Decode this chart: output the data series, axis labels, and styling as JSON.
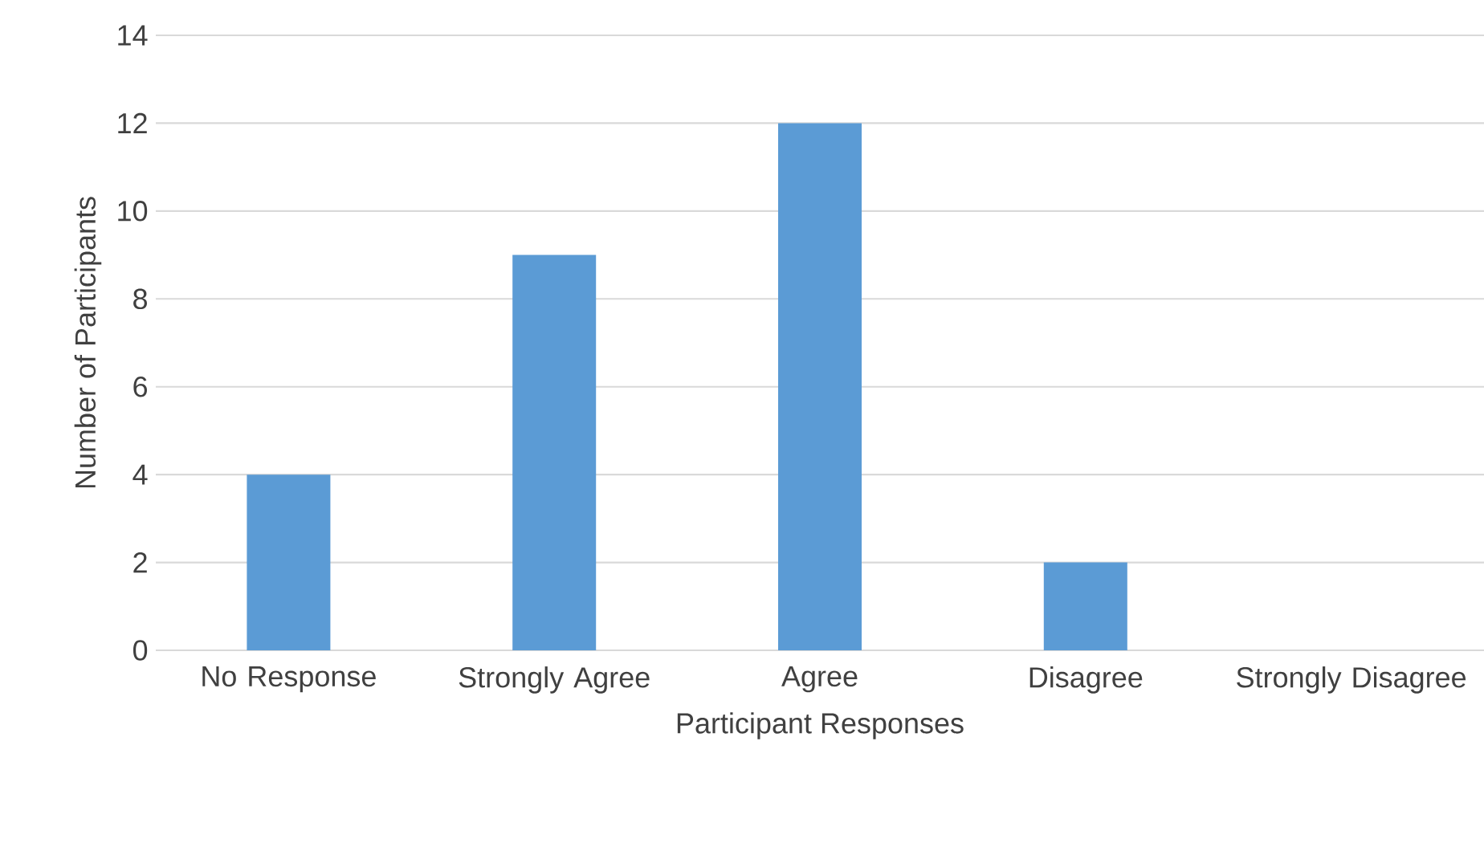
{
  "chart_data": {
    "type": "bar",
    "categories": [
      "No Response",
      "Strongly Agree",
      "Agree",
      "Disagree",
      "Strongly Disagree"
    ],
    "values": [
      4,
      9,
      12,
      2,
      0
    ],
    "color": "#5b9bd5",
    "xlabel": "Participant Responses",
    "ylabel": "Number of Participants",
    "ylim": [
      0,
      14
    ],
    "yticks": [
      0,
      2,
      4,
      6,
      8,
      10,
      12,
      14
    ],
    "grid": "y"
  }
}
